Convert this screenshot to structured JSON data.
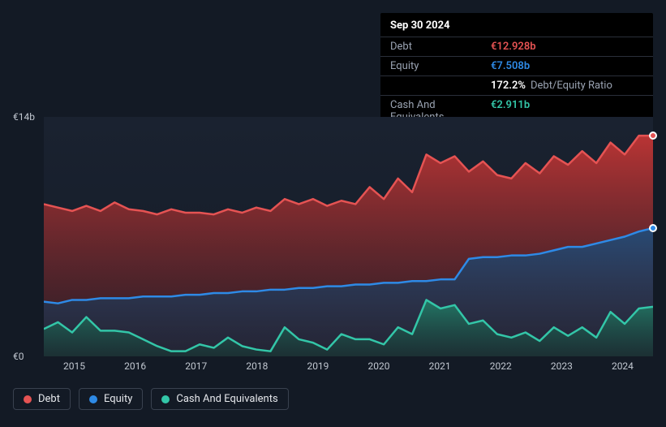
{
  "tooltip": {
    "date": "Sep 30 2024",
    "rows": [
      {
        "label": "Debt",
        "value": "€12.928b",
        "color": "#e55353"
      },
      {
        "label": "Equity",
        "value": "€7.508b",
        "color": "#2e8ae6"
      },
      {
        "label": "",
        "value": "172.2%",
        "sub": "Debt/Equity Ratio",
        "color": "#ffffff"
      },
      {
        "label": "Cash And Equivalents",
        "value": "€2.911b",
        "color": "#33c6a8"
      }
    ]
  },
  "chart": {
    "type": "area",
    "ylim": [
      0,
      14
    ],
    "yticks": [
      {
        "v": 14,
        "label": "€14b"
      },
      {
        "v": 0,
        "label": "€0"
      }
    ],
    "xticks": [
      "2015",
      "2016",
      "2017",
      "2018",
      "2019",
      "2020",
      "2021",
      "2022",
      "2023",
      "2024"
    ],
    "x_count": 44,
    "plot_bg_top": "#1a2230",
    "plot_bg_bottom": "#141b27",
    "axis_color": "#c1c7d0",
    "series": [
      {
        "name": "Debt",
        "color": "#e55353",
        "fill_from": "#b93434",
        "fill_to": "#5a222655",
        "line_width": 2.5,
        "values": [
          8.9,
          8.7,
          8.5,
          8.8,
          8.5,
          9.0,
          8.6,
          8.5,
          8.3,
          8.6,
          8.4,
          8.4,
          8.3,
          8.6,
          8.4,
          8.7,
          8.5,
          9.2,
          8.9,
          9.2,
          8.8,
          9.1,
          8.9,
          9.9,
          9.2,
          10.4,
          9.6,
          11.8,
          11.3,
          11.7,
          10.8,
          11.4,
          10.6,
          10.4,
          11.3,
          10.7,
          11.7,
          11.2,
          12.0,
          11.3,
          12.5,
          11.8,
          12.9,
          12.9
        ]
      },
      {
        "name": "Equity",
        "color": "#2e8ae6",
        "fill_from": "#274a74",
        "fill_to": "#1c2a3f88",
        "line_width": 2.5,
        "values": [
          3.2,
          3.1,
          3.3,
          3.3,
          3.4,
          3.4,
          3.4,
          3.5,
          3.5,
          3.5,
          3.6,
          3.6,
          3.7,
          3.7,
          3.8,
          3.8,
          3.9,
          3.9,
          4.0,
          4.0,
          4.1,
          4.1,
          4.2,
          4.2,
          4.3,
          4.3,
          4.4,
          4.4,
          4.5,
          4.5,
          5.7,
          5.8,
          5.8,
          5.9,
          5.9,
          6.0,
          6.2,
          6.4,
          6.4,
          6.6,
          6.8,
          7.0,
          7.3,
          7.5
        ]
      },
      {
        "name": "Cash And Equivalents",
        "color": "#33c6a8",
        "fill_from": "#237765",
        "fill_to": "#163a3488",
        "line_width": 2.5,
        "values": [
          1.6,
          2.0,
          1.4,
          2.3,
          1.5,
          1.5,
          1.4,
          1.0,
          0.6,
          0.3,
          0.3,
          0.7,
          0.5,
          1.1,
          0.6,
          0.4,
          0.3,
          1.7,
          1.0,
          0.8,
          0.4,
          1.3,
          1.0,
          1.0,
          0.7,
          1.7,
          1.3,
          3.3,
          2.8,
          3.0,
          1.9,
          2.1,
          1.3,
          1.1,
          1.4,
          0.9,
          1.7,
          1.2,
          1.7,
          1.1,
          2.6,
          1.9,
          2.8,
          2.9
        ]
      }
    ],
    "end_markers": [
      {
        "color": "#e55353",
        "v": 12.9
      },
      {
        "color": "#2e8ae6",
        "v": 7.5
      }
    ]
  },
  "legend": [
    {
      "label": "Debt",
      "color": "#e55353"
    },
    {
      "label": "Equity",
      "color": "#2e8ae6"
    },
    {
      "label": "Cash And Equivalents",
      "color": "#33c6a8"
    }
  ]
}
